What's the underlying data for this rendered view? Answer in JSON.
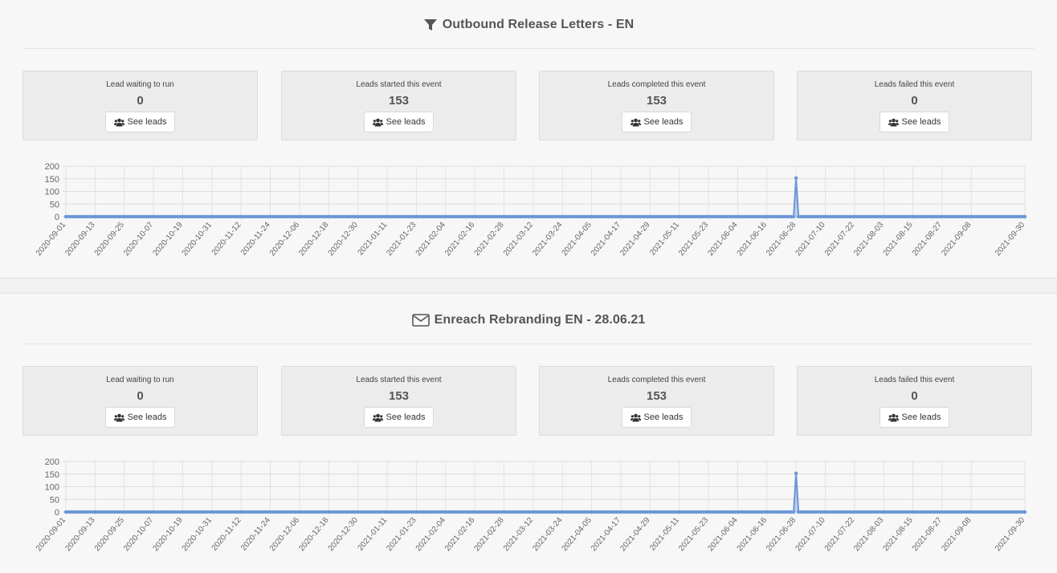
{
  "sections": [
    {
      "title": "Outbound Release Letters - EN",
      "icon": "filter-icon",
      "stats": [
        {
          "label": "Lead waiting to run",
          "value": "0",
          "button": "See leads"
        },
        {
          "label": "Leads started this event",
          "value": "153",
          "button": "See leads"
        },
        {
          "label": "Leads completed this event",
          "value": "153",
          "button": "See leads"
        },
        {
          "label": "Leads failed this event",
          "value": "0",
          "button": "See leads"
        }
      ]
    },
    {
      "title": "Enreach Rebranding EN - 28.06.21",
      "icon": "envelope-icon",
      "stats": [
        {
          "label": "Lead waiting to run",
          "value": "0",
          "button": "See leads"
        },
        {
          "label": "Leads started this event",
          "value": "153",
          "button": "See leads"
        },
        {
          "label": "Leads completed this event",
          "value": "153",
          "button": "See leads"
        },
        {
          "label": "Leads failed this event",
          "value": "0",
          "button": "See leads"
        }
      ]
    }
  ],
  "chart_data": [
    {
      "type": "area",
      "title": "",
      "xlabel": "",
      "ylabel": "",
      "x_start": "2020-09-01",
      "x_end": "2021-09-30",
      "x_tick_labels": [
        "2020-09-01",
        "2020-09-13",
        "2020-09-25",
        "2020-10-07",
        "2020-10-19",
        "2020-10-31",
        "2020-11-12",
        "2020-11-24",
        "2020-12-06",
        "2020-12-18",
        "2020-12-30",
        "2021-01-11",
        "2021-01-23",
        "2021-02-04",
        "2021-02-16",
        "2021-02-28",
        "2021-03-12",
        "2021-03-24",
        "2021-04-05",
        "2021-04-17",
        "2021-04-29",
        "2021-05-11",
        "2021-05-23",
        "2021-06-04",
        "2021-06-16",
        "2021-06-28",
        "2021-07-10",
        "2021-07-22",
        "2021-08-03",
        "2021-08-15",
        "2021-08-27",
        "2021-09-08",
        "2021-09-30"
      ],
      "y_ticks": [
        0,
        50,
        100,
        150,
        200
      ],
      "ylim": [
        0,
        200
      ],
      "baseline_value": 0,
      "points": [
        {
          "x": "2021-06-28",
          "y": 153
        }
      ],
      "color": "#6a95d8",
      "grid": true
    },
    {
      "type": "area",
      "title": "",
      "xlabel": "",
      "ylabel": "",
      "x_start": "2020-09-01",
      "x_end": "2021-09-30",
      "x_tick_labels": [
        "2020-09-01",
        "2020-09-13",
        "2020-09-25",
        "2020-10-07",
        "2020-10-19",
        "2020-10-31",
        "2020-11-12",
        "2020-11-24",
        "2020-12-06",
        "2020-12-18",
        "2020-12-30",
        "2021-01-11",
        "2021-01-23",
        "2021-02-04",
        "2021-02-16",
        "2021-02-28",
        "2021-03-12",
        "2021-03-24",
        "2021-04-05",
        "2021-04-17",
        "2021-04-29",
        "2021-05-11",
        "2021-05-23",
        "2021-06-04",
        "2021-06-16",
        "2021-06-28",
        "2021-07-10",
        "2021-07-22",
        "2021-08-03",
        "2021-08-15",
        "2021-08-27",
        "2021-09-08",
        "2021-09-30"
      ],
      "y_ticks": [
        0,
        50,
        100,
        150,
        200
      ],
      "ylim": [
        0,
        200
      ],
      "baseline_value": 0,
      "points": [
        {
          "x": "2021-06-28",
          "y": 153
        }
      ],
      "color": "#6a95d8",
      "grid": true
    }
  ]
}
